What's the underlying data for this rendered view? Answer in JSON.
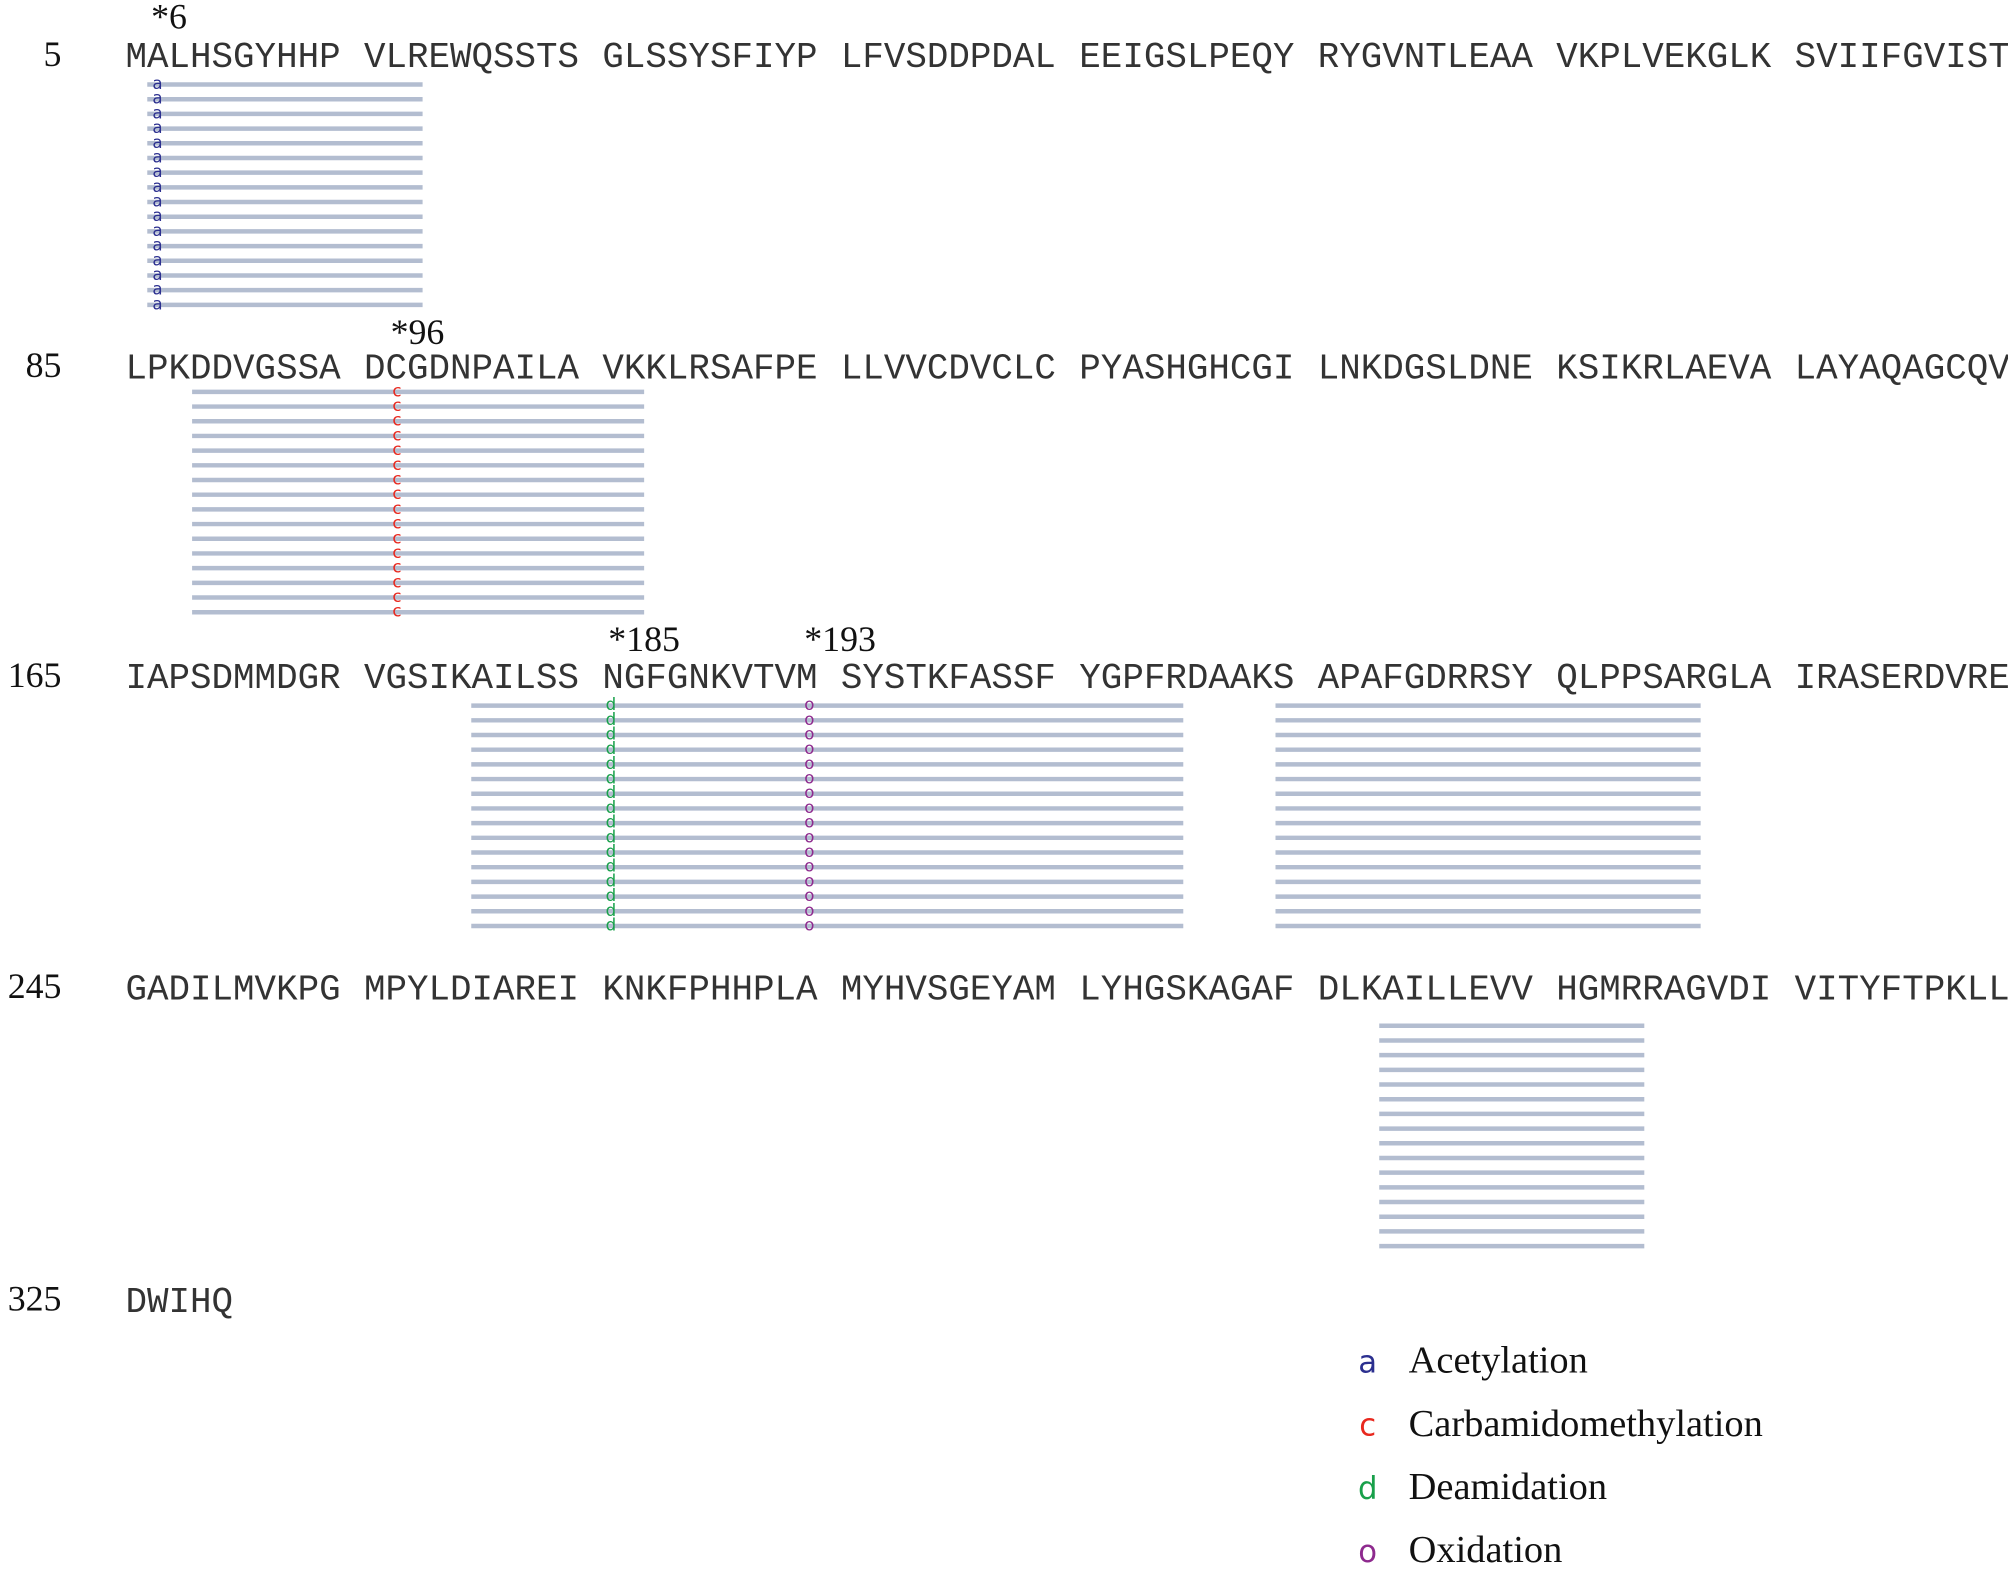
{
  "rows": [
    {
      "number": "5",
      "blocks": [
        "MALHSGYHHP",
        "VLREWQSSTS",
        "GLSSYSFIYP",
        "LFVSDDPDAL",
        "EEIGSLPEQY",
        "RYGVNTLEAA",
        "VKPLVEKGLK",
        "SVIIFGVIST"
      ]
    },
    {
      "number": "85",
      "blocks": [
        "LPKDDVGSSA",
        "DCGDNPAILA",
        "VKKLRSAFPE",
        "LLVVCDVCLC",
        "PYASHGHCGI",
        "LNKDGSLDNE",
        "KSIKRLAEVA",
        "LAYAQAGCQV"
      ]
    },
    {
      "number": "165",
      "blocks": [
        "IAPSDMMDGR",
        "VGSIKAILSS",
        "NGFGNKVTVM",
        "SYSTKFASSF",
        "YGPFRDAAKS",
        "APAFGDRRSY",
        "QLPPSARGLA",
        "IRASERDVRE"
      ]
    },
    {
      "number": "245",
      "blocks": [
        "GADILMVKPG",
        "MPYLDIAREI",
        "KNKFPHHPLA",
        "MYHVSGEYAM",
        "LYHGSKAGAF",
        "DLKAILLEVV",
        "HGMRRAGVDI",
        "VITYFTPKLL"
      ]
    },
    {
      "number": "325",
      "blocks": [
        "DWIHQ"
      ]
    }
  ],
  "sites": [
    "*6",
    "*96",
    "*185",
    "*193"
  ],
  "legend": {
    "items": [
      {
        "symbol": "a",
        "label": "Acetylation"
      },
      {
        "symbol": "c",
        "label": "Carbamidomethylation"
      },
      {
        "symbol": "d",
        "label": "Deamidation"
      },
      {
        "symbol": "o",
        "label": "Oxidation"
      }
    ]
  }
}
